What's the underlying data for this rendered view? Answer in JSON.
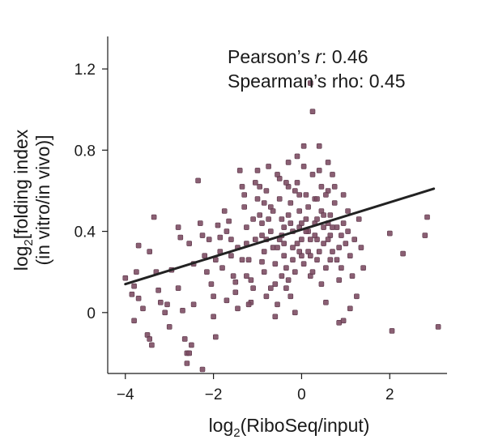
{
  "chart_data": {
    "type": "scatter",
    "title": "",
    "xlabel": {
      "prefix": "log",
      "sub": "2",
      "rest": "(RiboSeq/input)"
    },
    "ylabel": {
      "line1_prefix": "log",
      "line1_sub": "2",
      "line1_rest": "[folding index",
      "line2": "(in vitro/in vivo)]"
    },
    "xlim": [
      -4.4,
      3.3
    ],
    "ylim": [
      -0.3,
      1.36
    ],
    "xticks": [
      {
        "value": -4,
        "label": "−4"
      },
      {
        "value": -2,
        "label": "−2"
      },
      {
        "value": 0,
        "label": "0"
      },
      {
        "value": 2,
        "label": "2"
      }
    ],
    "yticks": [
      {
        "value": 0,
        "label": "0"
      },
      {
        "value": 0.4,
        "label": "0.4"
      },
      {
        "value": 0.8,
        "label": "0.8"
      },
      {
        "value": 1.2,
        "label": "1.2"
      }
    ],
    "annotations": {
      "pearson_prefix": "Pearson’s ",
      "pearson_var": "r",
      "pearson_value": ": 0.46",
      "spearman": "Spearman’s rho: 0.45"
    },
    "regression": {
      "x": [
        -4.0,
        3.0
      ],
      "y": [
        0.14,
        0.61
      ],
      "color": "#222222"
    },
    "point_color": "#7d4e64",
    "points": [
      [
        -4.0,
        0.17
      ],
      [
        -3.85,
        0.09
      ],
      [
        -3.8,
        0.13
      ],
      [
        -3.75,
        0.2
      ],
      [
        -3.7,
        0.07
      ],
      [
        -3.8,
        -0.04
      ],
      [
        -3.7,
        0.33
      ],
      [
        -3.45,
        0.3
      ],
      [
        -3.5,
        -0.11
      ],
      [
        -3.45,
        -0.13
      ],
      [
        -3.4,
        -0.16
      ],
      [
        -3.35,
        0.47
      ],
      [
        -3.25,
        0.11
      ],
      [
        -3.2,
        0.05
      ],
      [
        -3.05,
        0.04
      ],
      [
        -3.0,
        -0.07
      ],
      [
        -2.95,
        0.21
      ],
      [
        -2.8,
        0.42
      ],
      [
        -2.75,
        0.37
      ],
      [
        -2.7,
        0.01
      ],
      [
        -2.65,
        -0.13
      ],
      [
        -2.6,
        -0.2
      ],
      [
        -2.6,
        -0.25
      ],
      [
        -2.55,
        0.34
      ],
      [
        -2.5,
        -0.16
      ],
      [
        -2.45,
        0.04
      ],
      [
        -2.35,
        0.65
      ],
      [
        -2.3,
        0.44
      ],
      [
        -2.25,
        0.38
      ],
      [
        -2.2,
        0.28
      ],
      [
        -2.15,
        0.2
      ],
      [
        -2.1,
        0.36
      ],
      [
        -2.05,
        0.14
      ],
      [
        -2.0,
        0.08
      ],
      [
        -2.0,
        -0.02
      ],
      [
        -1.95,
        -0.12
      ],
      [
        -1.9,
        0.43
      ],
      [
        -1.85,
        0.37
      ],
      [
        -1.85,
        0.3
      ],
      [
        -1.8,
        0.22
      ],
      [
        -1.75,
        0.5
      ],
      [
        -1.7,
        0.4
      ],
      [
        -1.65,
        0.45
      ],
      [
        -1.6,
        0.28
      ],
      [
        -1.55,
        0.18
      ],
      [
        -1.5,
        0.1
      ],
      [
        -1.45,
        0.02
      ],
      [
        -1.4,
        0.7
      ],
      [
        -1.35,
        0.62
      ],
      [
        -1.3,
        0.58
      ],
      [
        -1.3,
        0.52
      ],
      [
        -1.25,
        0.42
      ],
      [
        -1.25,
        0.34
      ],
      [
        -1.2,
        0.26
      ],
      [
        -1.15,
        0.16
      ],
      [
        -1.1,
        0.12
      ],
      [
        -1.05,
        0.64
      ],
      [
        -1.0,
        0.7
      ],
      [
        -1.0,
        0.56
      ],
      [
        -0.95,
        0.48
      ],
      [
        -0.9,
        0.44
      ],
      [
        -0.9,
        0.38
      ],
      [
        -0.85,
        0.3
      ],
      [
        -0.85,
        0.2
      ],
      [
        -0.8,
        0.08
      ],
      [
        -0.8,
        0.6
      ],
      [
        -0.75,
        0.72
      ],
      [
        -0.7,
        0.52
      ],
      [
        -0.7,
        0.4
      ],
      [
        -0.65,
        0.32
      ],
      [
        -0.6,
        0.24
      ],
      [
        -0.6,
        0.14
      ],
      [
        -0.55,
        0.04
      ],
      [
        -0.5,
        0.66
      ],
      [
        -0.5,
        0.56
      ],
      [
        -0.45,
        0.46
      ],
      [
        -0.45,
        0.38
      ],
      [
        -0.4,
        0.34
      ],
      [
        -0.4,
        0.28
      ],
      [
        -0.35,
        0.22
      ],
      [
        -0.35,
        0.12
      ],
      [
        -0.3,
        0.74
      ],
      [
        -0.3,
        0.62
      ],
      [
        -0.25,
        0.54
      ],
      [
        -0.25,
        0.44
      ],
      [
        -0.2,
        0.4
      ],
      [
        -0.2,
        0.32
      ],
      [
        -0.15,
        0.2
      ],
      [
        -0.15,
        0.0
      ],
      [
        -0.1,
        0.77
      ],
      [
        -0.1,
        0.64
      ],
      [
        -0.05,
        0.5
      ],
      [
        -0.05,
        0.42
      ],
      [
        0.0,
        0.36
      ],
      [
        0.0,
        0.28
      ],
      [
        0.05,
        0.82
      ],
      [
        0.05,
        0.72
      ],
      [
        0.1,
        0.58
      ],
      [
        0.1,
        0.46
      ],
      [
        0.15,
        0.4
      ],
      [
        0.15,
        0.3
      ],
      [
        0.2,
        0.18
      ],
      [
        0.2,
        1.13
      ],
      [
        0.25,
        0.99
      ],
      [
        0.25,
        0.68
      ],
      [
        0.3,
        0.56
      ],
      [
        0.3,
        0.44
      ],
      [
        0.35,
        0.36
      ],
      [
        0.35,
        0.26
      ],
      [
        0.4,
        0.7
      ],
      [
        0.45,
        0.62
      ],
      [
        0.45,
        0.5
      ],
      [
        0.5,
        0.42
      ],
      [
        0.5,
        0.34
      ],
      [
        0.55,
        0.22
      ],
      [
        0.6,
        0.74
      ],
      [
        0.6,
        0.6
      ],
      [
        0.65,
        0.48
      ],
      [
        0.65,
        0.38
      ],
      [
        0.7,
        0.3
      ],
      [
        0.75,
        0.54
      ],
      [
        0.8,
        0.42
      ],
      [
        0.85,
        0.32
      ],
      [
        0.9,
        0.22
      ],
      [
        0.95,
        0.44
      ],
      [
        1.0,
        0.34
      ],
      [
        1.05,
        0.4
      ],
      [
        1.1,
        0.28
      ],
      [
        1.2,
        0.36
      ],
      [
        1.35,
        0.32
      ],
      [
        1.4,
        0.22
      ],
      [
        2.0,
        0.39
      ],
      [
        2.05,
        -0.09
      ],
      [
        2.3,
        0.29
      ],
      [
        2.8,
        0.38
      ],
      [
        2.85,
        0.47
      ],
      [
        3.1,
        -0.07
      ],
      [
        -3.3,
        0.2
      ],
      [
        -3.6,
        0.02
      ],
      [
        -2.25,
        -0.28
      ],
      [
        -2.55,
        -0.2
      ],
      [
        -1.5,
        0.15
      ],
      [
        -1.15,
        0.05
      ],
      [
        -0.9,
        0.25
      ],
      [
        -0.6,
        -0.02
      ],
      [
        -0.25,
        0.08
      ],
      [
        0.55,
        0.05
      ],
      [
        0.85,
        -0.05
      ],
      [
        0.95,
        -0.04
      ],
      [
        1.1,
        0.02
      ],
      [
        1.25,
        0.08
      ],
      [
        1.05,
        0.5
      ],
      [
        0.7,
        0.68
      ],
      [
        0.4,
        0.82
      ],
      [
        -0.05,
        0.58
      ],
      [
        -0.55,
        0.32
      ],
      [
        -1.05,
        0.36
      ],
      [
        -1.45,
        0.32
      ],
      [
        -1.95,
        0.26
      ],
      [
        -2.45,
        0.24
      ],
      [
        -0.75,
        0.46
      ],
      [
        -0.5,
        0.36
      ],
      [
        -0.3,
        0.48
      ],
      [
        -0.1,
        0.34
      ],
      [
        0.1,
        0.4
      ],
      [
        0.3,
        0.38
      ],
      [
        0.5,
        0.48
      ],
      [
        0.7,
        0.42
      ],
      [
        0.9,
        0.38
      ],
      [
        -0.4,
        0.42
      ],
      [
        -0.2,
        0.26
      ],
      [
        0.0,
        0.44
      ],
      [
        0.2,
        0.36
      ],
      [
        0.4,
        0.3
      ],
      [
        0.6,
        0.36
      ],
      [
        -0.65,
        0.5
      ],
      [
        -0.85,
        0.54
      ],
      [
        -1.1,
        0.46
      ],
      [
        -1.35,
        0.26
      ],
      [
        -1.6,
        0.36
      ],
      [
        0.15,
        0.52
      ],
      [
        0.35,
        0.56
      ],
      [
        0.55,
        0.58
      ],
      [
        0.75,
        0.62
      ],
      [
        -0.15,
        0.6
      ],
      [
        -0.35,
        0.64
      ],
      [
        -0.55,
        0.68
      ],
      [
        -0.95,
        0.62
      ],
      [
        0.25,
        0.2
      ],
      [
        0.45,
        0.14
      ],
      [
        0.65,
        0.26
      ],
      [
        0.85,
        0.16
      ],
      [
        -0.3,
        0.16
      ],
      [
        -0.7,
        0.12
      ],
      [
        -1.2,
        0.04
      ],
      [
        -1.7,
        0.06
      ],
      [
        -2.8,
        0.12
      ],
      [
        -3.1,
        0.0
      ],
      [
        0.05,
        0.24
      ],
      [
        -0.45,
        0.18
      ],
      [
        1.3,
        0.46
      ],
      [
        1.15,
        0.18
      ],
      [
        0.95,
        0.58
      ],
      [
        0.8,
        0.26
      ],
      [
        0.35,
        0.46
      ],
      [
        -0.05,
        0.3
      ],
      [
        -0.8,
        0.36
      ],
      [
        -1.25,
        0.18
      ],
      [
        0.2,
        0.28
      ],
      [
        0.6,
        0.44
      ]
    ]
  }
}
